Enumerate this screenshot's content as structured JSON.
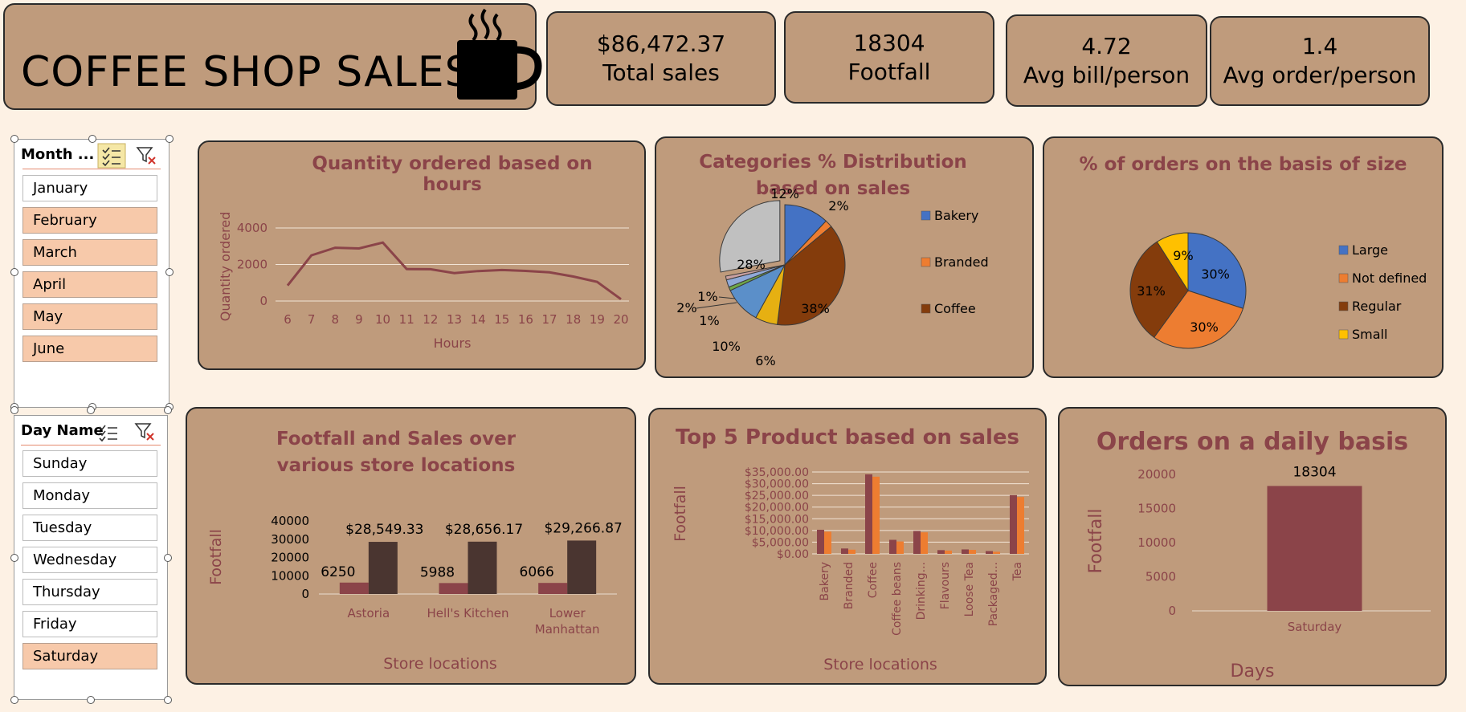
{
  "header": {
    "title": "COFFEE SHOP SALES",
    "icon": "coffee-mug-icon"
  },
  "kpis": [
    {
      "value": "$86,472.37",
      "label": "Total sales"
    },
    {
      "value": "18304",
      "label": "Footfall"
    },
    {
      "value": "4.72",
      "label": "Avg bill/person"
    },
    {
      "value": "1.4",
      "label": "Avg order/person"
    }
  ],
  "month_slicer": {
    "title": "Month ...",
    "items": [
      {
        "label": "January",
        "selected": false
      },
      {
        "label": "February",
        "selected": true
      },
      {
        "label": "March",
        "selected": true
      },
      {
        "label": "April",
        "selected": true
      },
      {
        "label": "May",
        "selected": true
      },
      {
        "label": "June",
        "selected": true
      }
    ]
  },
  "day_slicer": {
    "title": "Day Name",
    "items": [
      {
        "label": "Sunday",
        "selected": false
      },
      {
        "label": "Monday",
        "selected": false
      },
      {
        "label": "Tuesday",
        "selected": false
      },
      {
        "label": "Wednesday",
        "selected": false
      },
      {
        "label": "Thursday",
        "selected": false
      },
      {
        "label": "Friday",
        "selected": false
      },
      {
        "label": "Saturday",
        "selected": true
      }
    ]
  },
  "colors": {
    "card": "#bf9b7c",
    "title": "#8b4449",
    "line": "#8b4449",
    "bar_dark": "#4a3530",
    "bar_red": "#8b4449",
    "bar_orange": "#ed7d31",
    "background": "#fdf1e4"
  },
  "chart_data": [
    {
      "id": "hours",
      "type": "line",
      "title": "Quantity ordered based on hours",
      "xlabel": "Hours",
      "ylabel": "Quantity ordered",
      "x": [
        6,
        7,
        8,
        9,
        10,
        11,
        12,
        13,
        14,
        15,
        16,
        17,
        18,
        19,
        20
      ],
      "values": [
        850,
        2500,
        2920,
        2880,
        3200,
        1750,
        1740,
        1530,
        1640,
        1700,
        1650,
        1570,
        1340,
        1050,
        100
      ],
      "ylim": [
        0,
        4000
      ],
      "yticks": [
        "0",
        "2000",
        "4000"
      ],
      "grid": true
    },
    {
      "id": "categories",
      "type": "pie",
      "title": "Categories % Distribution based on sales",
      "slices": [
        {
          "name": "Bakery",
          "value": 12,
          "label": "12%",
          "color": "#4472c4"
        },
        {
          "name": "Branded",
          "value": 2,
          "label": "2%",
          "color": "#ed7d31"
        },
        {
          "name": "Coffee",
          "value": 38,
          "label": "38%",
          "color": "#843c0c"
        },
        {
          "name": "",
          "value": 6,
          "label": "6%",
          "color": "#e6b012"
        },
        {
          "name": "",
          "value": 10,
          "label": "10%",
          "color": "#5b8fc9"
        },
        {
          "name": "",
          "value": 1,
          "label": "1%",
          "color": "#6ea84a"
        },
        {
          "name": "",
          "value": 2,
          "label": "2%",
          "color": "#8fa9d8"
        },
        {
          "name": "",
          "value": 1,
          "label": "1%",
          "color": "#c9a0a0"
        },
        {
          "name": "",
          "value": 28,
          "label": "28%",
          "color": "#c0c0c0"
        }
      ],
      "legend": [
        "Bakery",
        "Branded",
        "Coffee"
      ],
      "legend_position": "right"
    },
    {
      "id": "sizes",
      "type": "pie",
      "title": "% of orders on the basis of size",
      "slices": [
        {
          "name": "Large",
          "value": 30,
          "label": "30%",
          "color": "#4472c4"
        },
        {
          "name": "Not defined",
          "value": 30,
          "label": "30%",
          "color": "#ed7d31"
        },
        {
          "name": "Regular",
          "value": 31,
          "label": "31%",
          "color": "#843c0c"
        },
        {
          "name": "Small",
          "value": 9,
          "label": "9%",
          "color": "#ffc000"
        }
      ],
      "legend_position": "right"
    },
    {
      "id": "locations",
      "type": "bar",
      "title": "Footfall and Sales over various store locations",
      "xlabel": "Store locations",
      "ylabel": "Footfall",
      "categories": [
        "Astoria",
        "Hell's Kitchen",
        "Lower Manhattan"
      ],
      "series": [
        {
          "values": [
            6250,
            5988,
            6066
          ],
          "labels": [
            "6250",
            "5988",
            "6066"
          ]
        },
        {
          "values": [
            28549.33,
            28656.17,
            29266.87
          ],
          "labels": [
            "$28,549.33",
            "$28,656.17",
            "$29,266.87"
          ]
        }
      ],
      "ylim": [
        0,
        40000
      ],
      "yticks": [
        "0",
        "10000",
        "20000",
        "30000",
        "40000"
      ]
    },
    {
      "id": "products",
      "type": "bar",
      "title": "Top 5 Product based on sales",
      "xlabel": "Store locations",
      "ylabel": "Footfall",
      "categories": [
        "Bakery",
        "Branded",
        "Coffee",
        "Coffee beans",
        "Drinking...",
        "Flavours",
        "Loose Tea",
        "Packaged...",
        "Tea"
      ],
      "series": [
        {
          "values": [
            10300,
            2300,
            34000,
            6000,
            9800,
            1600,
            1900,
            1200,
            25100
          ]
        },
        {
          "values": [
            9500,
            1800,
            33000,
            5300,
            9200,
            1400,
            1700,
            900,
            24300
          ]
        }
      ],
      "ylim": [
        0,
        35000
      ],
      "yticks": [
        "$0.00",
        "$5,000.00",
        "$10,000.00",
        "$15,000.00",
        "$20,000.00",
        "$25,000.00",
        "$30,000.00",
        "$35,000.00"
      ]
    },
    {
      "id": "daily",
      "type": "bar",
      "title": "Orders on a daily basis",
      "xlabel": "Days",
      "ylabel": "Footfall",
      "categories": [
        "Saturday"
      ],
      "values": [
        18304
      ],
      "value_labels": [
        "18304"
      ],
      "ylim": [
        0,
        20000
      ],
      "yticks": [
        "0",
        "5000",
        "10000",
        "15000",
        "20000"
      ]
    }
  ]
}
